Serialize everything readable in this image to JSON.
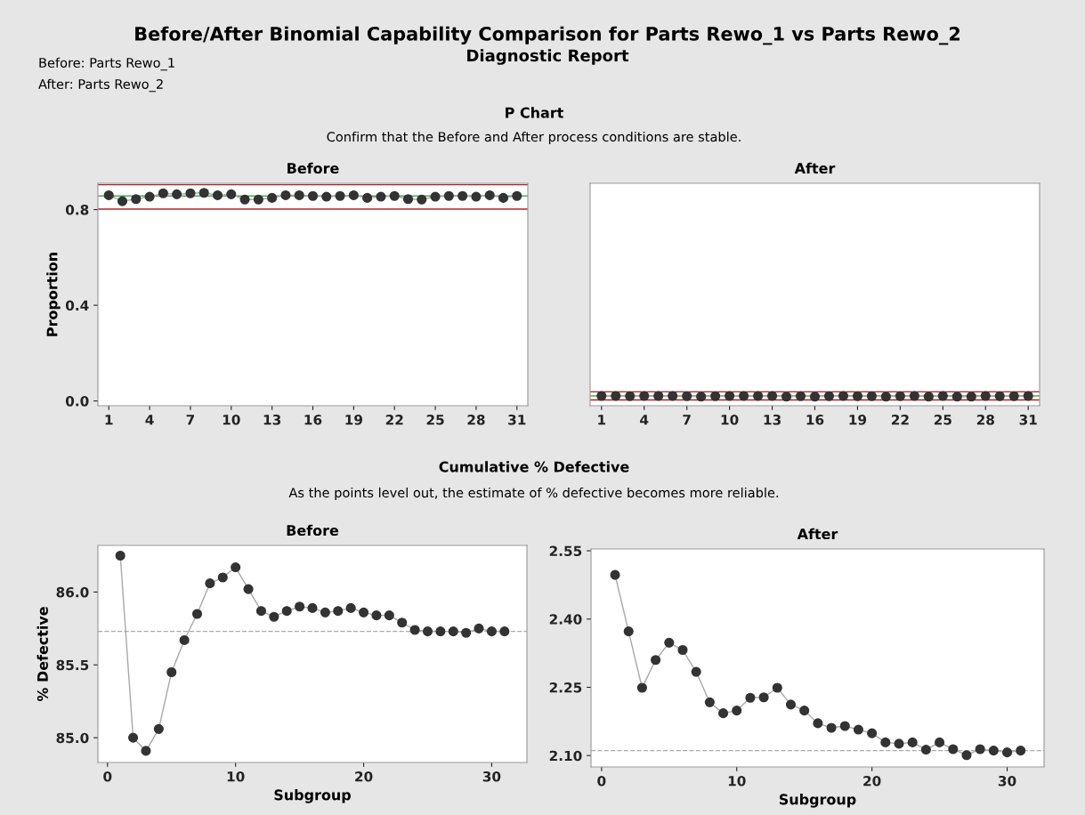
{
  "chart_data": [
    {
      "type": "line",
      "title": "Before",
      "ylabel": "Proportion",
      "annotations": [
        "Before/After Binomial Capability Comparison for Parts Rewo_1 vs Parts Rewo_2",
        "Diagnostic Report",
        "Before: Parts Rewo_1",
        "After: Parts Rewo_2",
        "P Chart",
        "Confirm that the Before and After process conditions are stable."
      ],
      "x": [
        1,
        2,
        3,
        4,
        5,
        6,
        7,
        8,
        9,
        10,
        11,
        12,
        13,
        14,
        15,
        16,
        17,
        18,
        19,
        20,
        21,
        22,
        23,
        24,
        25,
        26,
        27,
        28,
        29,
        30,
        31
      ],
      "series": [
        {
          "color": "#333333",
          "values": [
            0.86,
            0.835,
            0.844,
            0.854,
            0.868,
            0.864,
            0.868,
            0.87,
            0.86,
            0.864,
            0.842,
            0.842,
            0.849,
            0.86,
            0.86,
            0.857,
            0.854,
            0.857,
            0.86,
            0.849,
            0.854,
            0.857,
            0.844,
            0.842,
            0.854,
            0.857,
            0.857,
            0.854,
            0.86,
            0.849,
            0.857
          ]
        }
      ],
      "ref_lines": [
        {
          "axis": "y",
          "value": 0.904,
          "color": "#b22222",
          "line_style": "solid"
        },
        {
          "axis": "y",
          "value": 0.857,
          "color": "#3cb44b",
          "line_style": "solid"
        },
        {
          "axis": "y",
          "value": 0.802,
          "color": "#b22222",
          "line_style": "solid"
        }
      ],
      "xlim": [
        0.2,
        31.8
      ],
      "xticks": [
        1,
        4,
        7,
        10,
        13,
        16,
        19,
        22,
        25,
        28,
        31
      ],
      "ylim": [
        -0.02,
        0.91
      ],
      "yticks": [
        {
          "value": 0,
          "label": "0.0"
        },
        0.4,
        0.8
      ],
      "marker": "circle",
      "line_style": "solid",
      "grid": false,
      "legend": false
    },
    {
      "type": "line",
      "title": "After",
      "x": [
        1,
        2,
        3,
        4,
        5,
        6,
        7,
        8,
        9,
        10,
        11,
        12,
        13,
        14,
        15,
        16,
        17,
        18,
        19,
        20,
        21,
        22,
        23,
        24,
        25,
        26,
        27,
        28,
        29,
        30,
        31
      ],
      "series": [
        {
          "color": "#333333",
          "values": [
            0.021,
            0.021,
            0.02,
            0.021,
            0.021,
            0.021,
            0.02,
            0.018,
            0.02,
            0.021,
            0.021,
            0.021,
            0.021,
            0.018,
            0.02,
            0.018,
            0.02,
            0.021,
            0.02,
            0.02,
            0.018,
            0.02,
            0.021,
            0.018,
            0.021,
            0.018,
            0.018,
            0.021,
            0.02,
            0.02,
            0.021
          ]
        }
      ],
      "ref_lines": [
        {
          "axis": "y",
          "value": 0.038,
          "color": "#b22222",
          "line_style": "solid"
        },
        {
          "axis": "y",
          "value": 0.021,
          "color": "#3cb44b",
          "line_style": "solid"
        },
        {
          "axis": "y",
          "value": 0.004,
          "color": "#b22222",
          "line_style": "solid"
        }
      ],
      "xlim": [
        0.2,
        31.8
      ],
      "xticks": [
        1,
        4,
        7,
        10,
        13,
        16,
        19,
        22,
        25,
        28,
        31
      ],
      "ylim": [
        -0.02,
        0.91
      ],
      "tick_labels": "x",
      "marker": "circle",
      "line_style": "solid",
      "grid": false,
      "legend": false
    },
    {
      "type": "line",
      "title": "Before",
      "xlabel": "Subgroup",
      "ylabel": "% Defective",
      "annotations": [
        "Cumulative % Defective",
        "As the points level out, the estimate of % defective becomes more reliable."
      ],
      "x": [
        1,
        2,
        3,
        4,
        5,
        6,
        7,
        8,
        9,
        10,
        11,
        12,
        13,
        14,
        15,
        16,
        17,
        18,
        19,
        20,
        21,
        22,
        23,
        24,
        25,
        26,
        27,
        28,
        29,
        30,
        31
      ],
      "series": [
        {
          "color": "#333333",
          "values": [
            86.25,
            85.0,
            84.91,
            85.06,
            85.45,
            85.67,
            85.85,
            86.06,
            86.1,
            86.17,
            86.02,
            85.87,
            85.83,
            85.87,
            85.9,
            85.89,
            85.86,
            85.87,
            85.89,
            85.86,
            85.84,
            85.84,
            85.79,
            85.74,
            85.73,
            85.73,
            85.73,
            85.72,
            85.75,
            85.73,
            85.73
          ]
        }
      ],
      "ref_lines": [
        {
          "axis": "y",
          "value": 85.73,
          "color": "#aaaaaa",
          "line_style": "dashed"
        }
      ],
      "xlim": [
        -0.75,
        32.75
      ],
      "xticks": [
        0,
        10,
        20,
        30
      ],
      "ylim": [
        84.83,
        86.32
      ],
      "yticks": [
        {
          "value": 85,
          "label": "85.0"
        },
        85.5,
        {
          "value": 86,
          "label": "86.0"
        }
      ],
      "marker": "circle",
      "line_style": "solid",
      "grid": false,
      "legend": false
    },
    {
      "type": "line",
      "title": "After",
      "xlabel": "Subgroup",
      "x": [
        1,
        2,
        3,
        4,
        5,
        6,
        7,
        8,
        9,
        10,
        11,
        12,
        13,
        14,
        15,
        16,
        17,
        18,
        19,
        20,
        21,
        22,
        23,
        24,
        25,
        26,
        27,
        28,
        29,
        30,
        31
      ],
      "series": [
        {
          "color": "#333333",
          "values": [
            2.497,
            2.373,
            2.249,
            2.31,
            2.348,
            2.332,
            2.284,
            2.217,
            2.193,
            2.199,
            2.227,
            2.228,
            2.249,
            2.212,
            2.199,
            2.171,
            2.161,
            2.165,
            2.157,
            2.149,
            2.129,
            2.126,
            2.129,
            2.113,
            2.129,
            2.114,
            2.101,
            2.114,
            2.111,
            2.107,
            2.111
          ]
        }
      ],
      "ref_lines": [
        {
          "axis": "y",
          "value": 2.111,
          "color": "#aaaaaa",
          "line_style": "dashed"
        }
      ],
      "xlim": [
        -0.78,
        32.73
      ],
      "xticks": [
        0,
        10,
        20,
        30
      ],
      "ylim": [
        2.075,
        2.554
      ],
      "yticks": [
        {
          "value": 2.1,
          "label": "2.10"
        },
        2.25,
        {
          "value": 2.4,
          "label": "2.40"
        },
        2.55
      ],
      "marker": "circle",
      "line_style": "solid",
      "grid": false,
      "legend": false
    }
  ]
}
